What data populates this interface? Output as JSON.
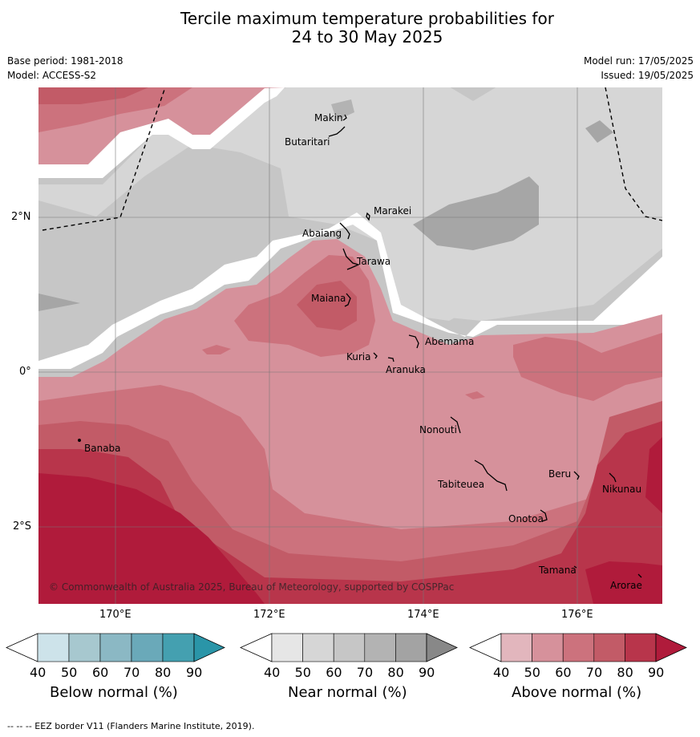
{
  "title_line1": "Tercile maximum temperature probabilities for",
  "title_line2": "24 to 30 May 2025",
  "meta_left": [
    "Base period: 1981-2018",
    "Model: ACCESS-S2"
  ],
  "meta_right": [
    "Model run: 17/05/2025",
    "Issued: 19/05/2025"
  ],
  "lon_labels": [
    "170°E",
    "172°E",
    "174°E",
    "176°E"
  ],
  "lat_labels": [
    "2°N",
    "0°",
    "2°S"
  ],
  "copyright": "© Commonwealth of Australia 2025, Bureau of Meteorology, supported by COSPPac",
  "places": {
    "makin": "Makin",
    "butaritari": "Butaritari",
    "marakei": "Marakei",
    "abaiang": "Abaiang",
    "tarawa": "Tarawa",
    "maiana": "Maiana",
    "abemama": "Abemama",
    "kuria": "Kuria",
    "aranuka": "Aranuka",
    "banaba": "Banaba",
    "nonouti": "Nonouti",
    "beru": "Beru",
    "nikunau": "Nikunau",
    "tabiteuea": "Tabiteuea",
    "onotoa": "Onotoa",
    "tamana": "Tamana",
    "arorae": "Arorae"
  },
  "colorbars": {
    "below": {
      "title": "Below normal (%)",
      "ticks": [
        "40",
        "50",
        "60",
        "70",
        "80",
        "90"
      ],
      "colors": [
        "#cde3ea",
        "#a7c8cf",
        "#8bb8c4",
        "#6aa9b9",
        "#44a0b0",
        "#2a95a8"
      ]
    },
    "near": {
      "title": "Near normal (%)",
      "ticks": [
        "40",
        "50",
        "60",
        "70",
        "80",
        "90"
      ],
      "colors": [
        "#e6e6e6",
        "#d6d6d6",
        "#c6c6c6",
        "#b3b3b3",
        "#a3a3a3",
        "#888888"
      ]
    },
    "above": {
      "title": "Above normal (%)",
      "ticks": [
        "40",
        "50",
        "60",
        "70",
        "80",
        "90"
      ],
      "colors": [
        "#e2b6bd",
        "#d6919b",
        "#cc727d",
        "#c25b67",
        "#b8354b",
        "#b01b3b"
      ]
    }
  },
  "footer": "--  --  -- EEZ border V11 (Flanders Marine Institute, 2019)."
}
